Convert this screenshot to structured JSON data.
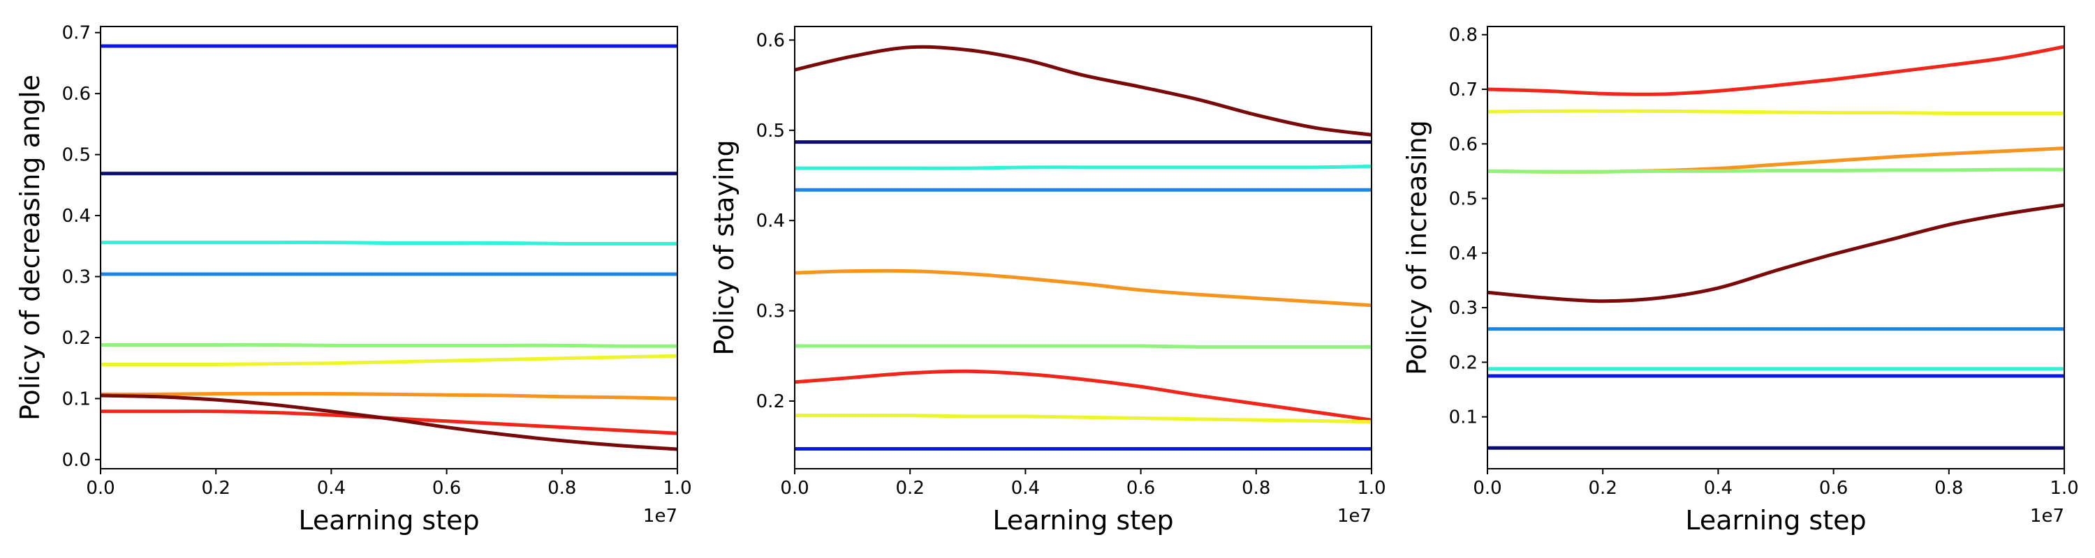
{
  "chart_data": [
    {
      "type": "line",
      "title": "",
      "xlabel": "Learning step",
      "ylabel": "Policy of decreasing angle",
      "x_offset_label": "1e7",
      "xlim": [
        0,
        1.0
      ],
      "ylim": [
        -0.015,
        0.71
      ],
      "xticks": [
        0.0,
        0.2,
        0.4,
        0.6,
        0.8,
        1.0
      ],
      "xtick_labels": [
        "0.0",
        "0.2",
        "0.4",
        "0.6",
        "0.8",
        "1.0"
      ],
      "yticks": [
        0.0,
        0.1,
        0.2,
        0.3,
        0.4,
        0.5,
        0.6,
        0.7
      ],
      "ytick_labels": [
        "0.0",
        "0.1",
        "0.2",
        "0.3",
        "0.4",
        "0.5",
        "0.6",
        "0.7"
      ],
      "x": [
        0.0,
        0.1,
        0.2,
        0.3,
        0.4,
        0.5,
        0.6,
        0.7,
        0.8,
        0.9,
        1.0
      ],
      "series": [
        {
          "color": "#0a18e6",
          "values": [
            0.678,
            0.678,
            0.678,
            0.678,
            0.678,
            0.678,
            0.678,
            0.678,
            0.678,
            0.678,
            0.678
          ]
        },
        {
          "color": "#0c0c6e",
          "values": [
            0.469,
            0.469,
            0.469,
            0.469,
            0.469,
            0.469,
            0.469,
            0.469,
            0.469,
            0.469,
            0.469
          ]
        },
        {
          "color": "#30f2d8",
          "values": [
            0.356,
            0.356,
            0.356,
            0.356,
            0.356,
            0.355,
            0.355,
            0.355,
            0.354,
            0.354,
            0.354
          ]
        },
        {
          "color": "#1c86e6",
          "values": [
            0.304,
            0.304,
            0.304,
            0.304,
            0.304,
            0.304,
            0.304,
            0.304,
            0.304,
            0.304,
            0.304
          ]
        },
        {
          "color": "#8ef57a",
          "values": [
            0.188,
            0.188,
            0.188,
            0.188,
            0.187,
            0.187,
            0.187,
            0.187,
            0.187,
            0.186,
            0.186
          ]
        },
        {
          "color": "#eef52a",
          "values": [
            0.156,
            0.156,
            0.156,
            0.157,
            0.158,
            0.16,
            0.162,
            0.164,
            0.166,
            0.168,
            0.17
          ]
        },
        {
          "color": "#f7941d",
          "values": [
            0.107,
            0.107,
            0.108,
            0.108,
            0.108,
            0.107,
            0.106,
            0.105,
            0.103,
            0.102,
            0.1
          ]
        },
        {
          "color": "#f0261a",
          "values": [
            0.079,
            0.079,
            0.079,
            0.077,
            0.073,
            0.068,
            0.063,
            0.058,
            0.053,
            0.048,
            0.043
          ]
        },
        {
          "color": "#7a0a0a",
          "values": [
            0.105,
            0.103,
            0.098,
            0.09,
            0.079,
            0.067,
            0.053,
            0.041,
            0.031,
            0.023,
            0.017
          ]
        }
      ]
    },
    {
      "type": "line",
      "title": "",
      "xlabel": "Learning step",
      "ylabel": "Policy of staying",
      "x_offset_label": "1e7",
      "xlim": [
        0,
        1.0
      ],
      "ylim": [
        0.125,
        0.615
      ],
      "xticks": [
        0.0,
        0.2,
        0.4,
        0.6,
        0.8,
        1.0
      ],
      "xtick_labels": [
        "0.0",
        "0.2",
        "0.4",
        "0.6",
        "0.8",
        "1.0"
      ],
      "yticks": [
        0.2,
        0.3,
        0.4,
        0.5,
        0.6
      ],
      "ytick_labels": [
        "0.2",
        "0.3",
        "0.4",
        "0.5",
        "0.6"
      ],
      "x": [
        0.0,
        0.1,
        0.2,
        0.3,
        0.4,
        0.5,
        0.6,
        0.7,
        0.8,
        0.9,
        1.0
      ],
      "series": [
        {
          "color": "#7a0a0a",
          "values": [
            0.567,
            0.582,
            0.592,
            0.589,
            0.578,
            0.561,
            0.548,
            0.534,
            0.517,
            0.503,
            0.495
          ]
        },
        {
          "color": "#0c0c6e",
          "values": [
            0.487,
            0.487,
            0.487,
            0.487,
            0.487,
            0.487,
            0.487,
            0.487,
            0.487,
            0.487,
            0.487
          ]
        },
        {
          "color": "#30f2d8",
          "values": [
            0.458,
            0.458,
            0.458,
            0.458,
            0.459,
            0.459,
            0.459,
            0.459,
            0.459,
            0.459,
            0.46
          ]
        },
        {
          "color": "#1c86e6",
          "values": [
            0.434,
            0.434,
            0.434,
            0.434,
            0.434,
            0.434,
            0.434,
            0.434,
            0.434,
            0.434,
            0.434
          ]
        },
        {
          "color": "#f7941d",
          "values": [
            0.342,
            0.344,
            0.344,
            0.341,
            0.336,
            0.33,
            0.323,
            0.318,
            0.314,
            0.31,
            0.306
          ]
        },
        {
          "color": "#8ef57a",
          "values": [
            0.261,
            0.261,
            0.261,
            0.261,
            0.261,
            0.261,
            0.261,
            0.26,
            0.26,
            0.26,
            0.26
          ]
        },
        {
          "color": "#f0261a",
          "values": [
            0.221,
            0.226,
            0.231,
            0.233,
            0.23,
            0.224,
            0.216,
            0.206,
            0.197,
            0.188,
            0.179
          ]
        },
        {
          "color": "#eef52a",
          "values": [
            0.184,
            0.184,
            0.184,
            0.183,
            0.183,
            0.182,
            0.181,
            0.18,
            0.179,
            0.178,
            0.177
          ]
        },
        {
          "color": "#0a18e6",
          "values": [
            0.147,
            0.147,
            0.147,
            0.147,
            0.147,
            0.147,
            0.147,
            0.147,
            0.147,
            0.147,
            0.147
          ]
        }
      ]
    },
    {
      "type": "line",
      "title": "",
      "xlabel": "Learning step",
      "ylabel": "Policy of increasing",
      "x_offset_label": "1e7",
      "xlim": [
        0,
        1.0
      ],
      "ylim": [
        0.005,
        0.815
      ],
      "xticks": [
        0.0,
        0.2,
        0.4,
        0.6,
        0.8,
        1.0
      ],
      "xtick_labels": [
        "0.0",
        "0.2",
        "0.4",
        "0.6",
        "0.8",
        "1.0"
      ],
      "yticks": [
        0.1,
        0.2,
        0.3,
        0.4,
        0.5,
        0.6,
        0.7,
        0.8
      ],
      "ytick_labels": [
        "0.1",
        "0.2",
        "0.3",
        "0.4",
        "0.5",
        "0.6",
        "0.7",
        "0.8"
      ],
      "x": [
        0.0,
        0.1,
        0.2,
        0.3,
        0.4,
        0.5,
        0.6,
        0.7,
        0.8,
        0.9,
        1.0
      ],
      "series": [
        {
          "color": "#f0261a",
          "values": [
            0.7,
            0.697,
            0.692,
            0.691,
            0.697,
            0.707,
            0.718,
            0.731,
            0.744,
            0.758,
            0.778
          ]
        },
        {
          "color": "#eef52a",
          "values": [
            0.659,
            0.66,
            0.66,
            0.66,
            0.659,
            0.658,
            0.657,
            0.657,
            0.656,
            0.656,
            0.656
          ]
        },
        {
          "color": "#f7941d",
          "values": [
            0.55,
            0.549,
            0.549,
            0.551,
            0.555,
            0.562,
            0.569,
            0.576,
            0.582,
            0.587,
            0.592
          ]
        },
        {
          "color": "#8ef57a",
          "values": [
            0.55,
            0.549,
            0.549,
            0.55,
            0.55,
            0.551,
            0.551,
            0.552,
            0.552,
            0.553,
            0.553
          ]
        },
        {
          "color": "#7a0a0a",
          "values": [
            0.328,
            0.318,
            0.312,
            0.318,
            0.336,
            0.368,
            0.398,
            0.425,
            0.452,
            0.472,
            0.488
          ]
        },
        {
          "color": "#1c86e6",
          "values": [
            0.261,
            0.261,
            0.261,
            0.261,
            0.261,
            0.261,
            0.261,
            0.261,
            0.261,
            0.261,
            0.261
          ]
        },
        {
          "color": "#30f2d8",
          "values": [
            0.188,
            0.188,
            0.188,
            0.188,
            0.188,
            0.188,
            0.188,
            0.188,
            0.188,
            0.188,
            0.188
          ]
        },
        {
          "color": "#0a18e6",
          "values": [
            0.175,
            0.175,
            0.175,
            0.175,
            0.175,
            0.175,
            0.175,
            0.175,
            0.175,
            0.175,
            0.175
          ]
        },
        {
          "color": "#0c0c6e",
          "values": [
            0.043,
            0.043,
            0.043,
            0.043,
            0.043,
            0.043,
            0.043,
            0.043,
            0.043,
            0.043,
            0.043
          ]
        }
      ]
    }
  ]
}
